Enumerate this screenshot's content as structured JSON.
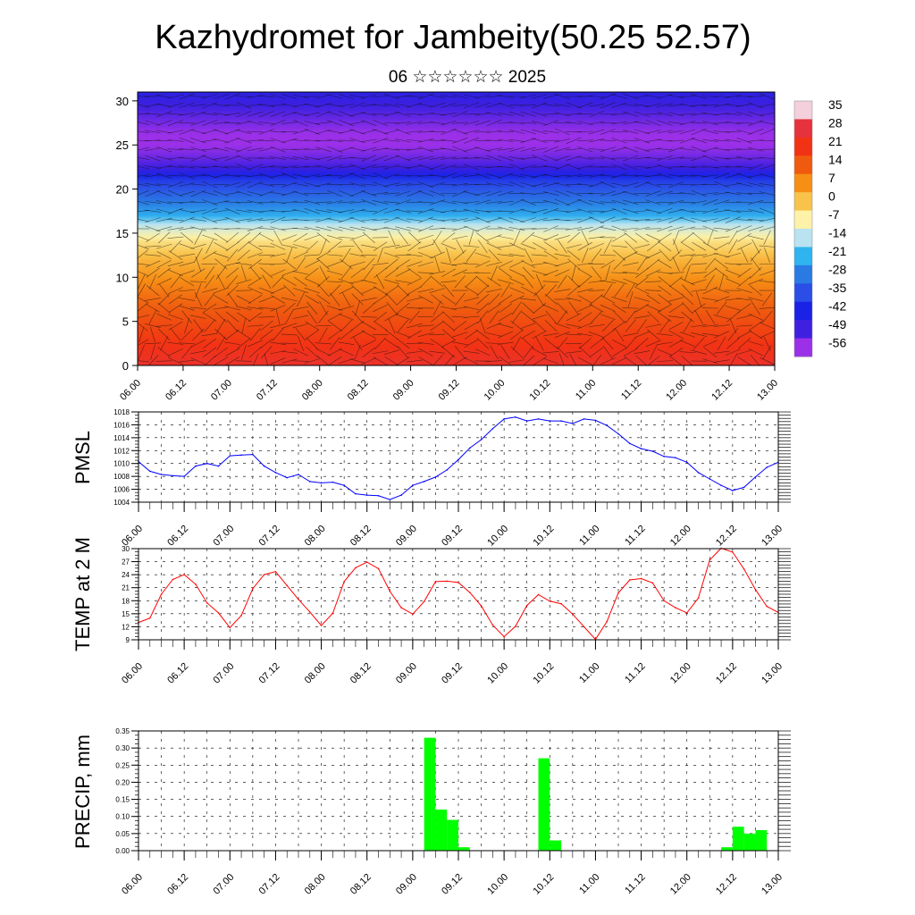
{
  "title": "Kazhydromet for Jambeity(50.25 52.57)",
  "subtitle": "06 ☆☆☆☆☆☆ 2025",
  "chart_data": [
    {
      "type": "heatmap",
      "xlim": [
        0,
        168
      ],
      "x_ticks": [
        0,
        12,
        24,
        36,
        48,
        60,
        72,
        84,
        96,
        108,
        120,
        132,
        144,
        156,
        168
      ],
      "x_tick_labels": [
        "06.00",
        "06.12",
        "07.00",
        "07.12",
        "08.00",
        "08.12",
        "09.00",
        "09.12",
        "10.00",
        "10.12",
        "11.00",
        "11.12",
        "12.00",
        "12.12",
        "13.00"
      ],
      "ylim": [
        0,
        31
      ],
      "y_ticks": [
        0,
        5,
        10,
        15,
        20,
        25,
        30
      ],
      "colorbar_labels": [
        "35",
        "28",
        "21",
        "14",
        "7",
        "0",
        "-7",
        "-14",
        "-21",
        "-28",
        "-35",
        "-42",
        "-49",
        "-56"
      ],
      "colorbar_colors": [
        "#f4d0dc",
        "#e6323c",
        "#f23214",
        "#f05a0f",
        "#f68f15",
        "#f9c34b",
        "#fdf2a8",
        "#b9e3f0",
        "#2fb4f0",
        "#2a7ae4",
        "#2a4ee6",
        "#1a22e6",
        "#4020e0",
        "#9b30e8"
      ],
      "temperature_profile": [
        {
          "y": 0,
          "v": 25
        },
        {
          "y": 4,
          "v": 18
        },
        {
          "y": 8,
          "v": 11
        },
        {
          "y": 12,
          "v": 2
        },
        {
          "y": 14,
          "v": -4
        },
        {
          "y": 16,
          "v": -14
        },
        {
          "y": 17,
          "v": -22
        },
        {
          "y": 19,
          "v": -30
        },
        {
          "y": 21,
          "v": -38
        },
        {
          "y": 22.5,
          "v": -49
        },
        {
          "y": 25.5,
          "v": -58
        },
        {
          "y": 28,
          "v": -52
        },
        {
          "y": 31,
          "v": -45
        }
      ]
    },
    {
      "type": "line",
      "ylabel": "PMSL",
      "xlim": [
        0,
        168
      ],
      "ylim": [
        1004,
        1018
      ],
      "y_ticks": [
        1004,
        1006,
        1008,
        1010,
        1012,
        1014,
        1016,
        1018
      ],
      "x_ticks": [
        0,
        12,
        24,
        36,
        48,
        60,
        72,
        84,
        96,
        108,
        120,
        132,
        144,
        156,
        168
      ],
      "x_tick_labels": [
        "06.00",
        "06.12",
        "07.00",
        "07.12",
        "08.00",
        "08.12",
        "09.00",
        "09.12",
        "10.00",
        "10.12",
        "11.00",
        "11.12",
        "12.00",
        "12.12",
        "13.00"
      ],
      "color": "#0000ff",
      "x": [
        0,
        3,
        6,
        9,
        12,
        15,
        18,
        21,
        24,
        27,
        30,
        33,
        36,
        39,
        42,
        45,
        48,
        51,
        54,
        57,
        60,
        63,
        66,
        69,
        72,
        75,
        78,
        81,
        84,
        87,
        90,
        93,
        96,
        99,
        102,
        105,
        108,
        111,
        114,
        117,
        120,
        123,
        126,
        129,
        132,
        135,
        138,
        141,
        144,
        147,
        150,
        153,
        156,
        159,
        162,
        165,
        168
      ],
      "y": [
        1010.3,
        1008.8,
        1008.3,
        1008.1,
        1008.0,
        1009.6,
        1010.0,
        1009.6,
        1011.2,
        1011.3,
        1011.4,
        1009.6,
        1008.6,
        1007.8,
        1008.3,
        1007.2,
        1007.0,
        1007.1,
        1006.6,
        1005.3,
        1005.1,
        1005.0,
        1004.4,
        1005.1,
        1006.6,
        1007.2,
        1007.9,
        1009.0,
        1010.6,
        1012.4,
        1013.7,
        1015.4,
        1016.9,
        1017.2,
        1016.6,
        1016.9,
        1016.6,
        1016.6,
        1016.2,
        1016.9,
        1016.7,
        1015.9,
        1014.6,
        1013.1,
        1012.3,
        1011.9,
        1011.1,
        1010.9,
        1010.2,
        1008.6,
        1007.6,
        1006.6,
        1005.8,
        1006.3,
        1007.9,
        1009.4,
        1010.2
      ]
    },
    {
      "type": "line",
      "ylabel": "TEMP at 2 M",
      "xlim": [
        0,
        168
      ],
      "ylim": [
        9,
        30
      ],
      "y_ticks": [
        9,
        12,
        15,
        18,
        21,
        24,
        27,
        30
      ],
      "x_ticks": [
        0,
        12,
        24,
        36,
        48,
        60,
        72,
        84,
        96,
        108,
        120,
        132,
        144,
        156,
        168
      ],
      "x_tick_labels": [
        "06.00",
        "06.12",
        "07.00",
        "07.12",
        "08.00",
        "08.12",
        "09.00",
        "09.12",
        "10.00",
        "10.12",
        "11.00",
        "11.12",
        "12.00",
        "12.12",
        "13.00"
      ],
      "color": "#ff0000",
      "x": [
        0,
        3,
        6,
        9,
        12,
        15,
        18,
        21,
        24,
        27,
        30,
        33,
        36,
        39,
        42,
        45,
        48,
        51,
        54,
        57,
        60,
        63,
        66,
        69,
        72,
        75,
        78,
        81,
        84,
        87,
        90,
        93,
        96,
        99,
        102,
        105,
        108,
        111,
        114,
        117,
        120,
        123,
        126,
        129,
        132,
        135,
        138,
        141,
        144,
        147,
        150,
        153,
        156,
        159,
        162,
        165,
        168
      ],
      "y": [
        13.0,
        14.0,
        19.5,
        22.9,
        24.0,
        21.8,
        17.5,
        15.2,
        11.8,
        14.6,
        20.8,
        24.0,
        24.7,
        21.5,
        18.3,
        15.4,
        12.3,
        15.1,
        22.4,
        25.6,
        26.9,
        25.4,
        20.2,
        16.4,
        14.9,
        17.8,
        22.4,
        22.5,
        22.2,
        19.9,
        16.8,
        12.4,
        9.7,
        12.1,
        16.9,
        19.4,
        17.9,
        17.3,
        14.9,
        12.0,
        9.1,
        13.2,
        19.8,
        22.8,
        23.1,
        22.1,
        18.0,
        16.4,
        15.2,
        18.6,
        27.4,
        30.1,
        29.2,
        25.3,
        20.6,
        16.7,
        15.3
      ]
    },
    {
      "type": "bar",
      "ylabel": "PRECIP, mm",
      "xlim": [
        0,
        168
      ],
      "ylim": [
        0,
        0.35
      ],
      "y_ticks": [
        0,
        0.05,
        0.1,
        0.15,
        0.2,
        0.25,
        0.3,
        0.35
      ],
      "y_tick_labels": [
        "0.00",
        "0.05",
        "0.10",
        "0.15",
        "0.20",
        "0.25",
        "0.30",
        "0.35"
      ],
      "x_ticks": [
        0,
        12,
        24,
        36,
        48,
        60,
        72,
        84,
        96,
        108,
        120,
        132,
        144,
        156,
        168
      ],
      "x_tick_labels": [
        "06.00",
        "06.12",
        "07.00",
        "07.12",
        "08.00",
        "08.12",
        "09.00",
        "09.12",
        "10.00",
        "10.12",
        "11.00",
        "11.12",
        "12.00",
        "12.12",
        "13.00"
      ],
      "color": "#00ff00",
      "bars": [
        {
          "x": 75,
          "v": 0.33
        },
        {
          "x": 78,
          "v": 0.12
        },
        {
          "x": 81,
          "v": 0.09
        },
        {
          "x": 84,
          "v": 0.01
        },
        {
          "x": 105,
          "v": 0.27
        },
        {
          "x": 108,
          "v": 0.03
        },
        {
          "x": 153,
          "v": 0.01
        },
        {
          "x": 156,
          "v": 0.07
        },
        {
          "x": 159,
          "v": 0.05
        },
        {
          "x": 162,
          "v": 0.06
        }
      ]
    }
  ]
}
